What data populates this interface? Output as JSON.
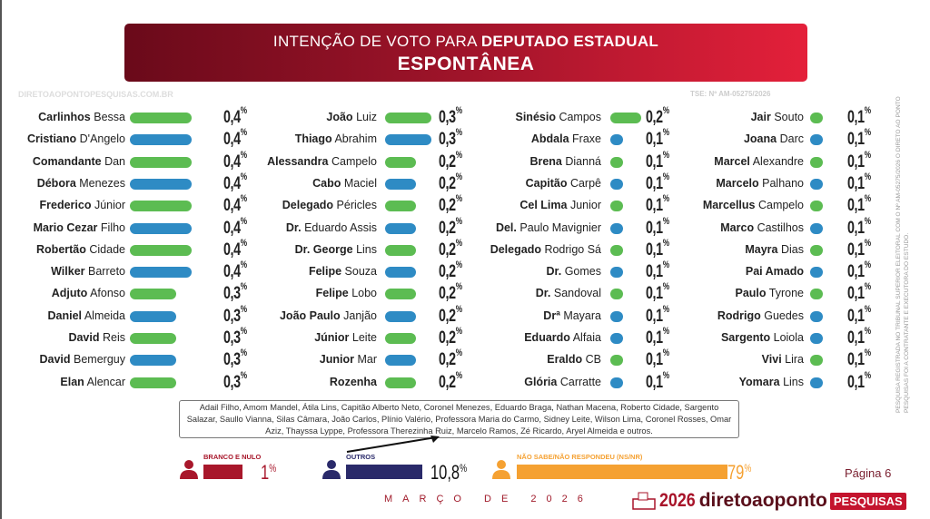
{
  "header": {
    "title_prefix": "INTENÇÃO DE VOTO PARA ",
    "title_bold": "DEPUTADO ESTADUAL",
    "subtitle": "ESPONTÂNEA"
  },
  "colors": {
    "green": "#5cbc52",
    "blue": "#2e8bc4",
    "branco": "#a8172b",
    "outros": "#2a2a6a",
    "nsnr": "#f5a132"
  },
  "chart_data": {
    "type": "bar",
    "title": "INTENÇÃO DE VOTO PARA DEPUTADO ESTADUAL - ESPONTÂNEA",
    "unit": "%",
    "columns": [
      [
        {
          "bold": "Carlinhos",
          "rest": "Bessa",
          "value": 0.4,
          "label": "0,4",
          "color": "green"
        },
        {
          "bold": "Cristiano",
          "rest": "D'Angelo",
          "value": 0.4,
          "label": "0,4",
          "color": "blue"
        },
        {
          "bold": "Comandante",
          "rest": "Dan",
          "value": 0.4,
          "label": "0,4",
          "color": "green"
        },
        {
          "bold": "Débora",
          "rest": "Menezes",
          "value": 0.4,
          "label": "0,4",
          "color": "blue"
        },
        {
          "bold": "Frederico",
          "rest": "Júnior",
          "value": 0.4,
          "label": "0,4",
          "color": "green"
        },
        {
          "bold": "Mario Cezar",
          "rest": "Filho",
          "value": 0.4,
          "label": "0,4",
          "color": "blue"
        },
        {
          "bold": "Robertão",
          "rest": "Cidade",
          "value": 0.4,
          "label": "0,4",
          "color": "green"
        },
        {
          "bold": "Wilker",
          "rest": "Barreto",
          "value": 0.4,
          "label": "0,4",
          "color": "blue"
        },
        {
          "bold": "Adjuto",
          "rest": "Afonso",
          "value": 0.3,
          "label": "0,3",
          "color": "green"
        },
        {
          "bold": "Daniel",
          "rest": "Almeida",
          "value": 0.3,
          "label": "0,3",
          "color": "blue"
        },
        {
          "bold": "David",
          "rest": "Reis",
          "value": 0.3,
          "label": "0,3",
          "color": "green"
        },
        {
          "bold": "David",
          "rest": "Bemerguy",
          "value": 0.3,
          "label": "0,3",
          "color": "blue"
        },
        {
          "bold": "Elan",
          "rest": "Alencar",
          "value": 0.3,
          "label": "0,3",
          "color": "green"
        }
      ],
      [
        {
          "bold": "João",
          "rest": "Luiz",
          "value": 0.3,
          "label": "0,3",
          "color": "green"
        },
        {
          "bold": "Thiago",
          "rest": "Abrahim",
          "value": 0.3,
          "label": "0,3",
          "color": "blue"
        },
        {
          "bold": "Alessandra",
          "rest": "Campelo",
          "value": 0.2,
          "label": "0,2",
          "color": "green"
        },
        {
          "bold": "Cabo",
          "rest": "Maciel",
          "value": 0.2,
          "label": "0,2",
          "color": "blue"
        },
        {
          "bold": "Delegado",
          "rest": "Péricles",
          "value": 0.2,
          "label": "0,2",
          "color": "green"
        },
        {
          "bold": "Dr.",
          "rest": "Eduardo Assis",
          "value": 0.2,
          "label": "0,2",
          "color": "blue"
        },
        {
          "bold": "Dr. George",
          "rest": "Lins",
          "value": 0.2,
          "label": "0,2",
          "color": "green"
        },
        {
          "bold": "Felipe",
          "rest": "Souza",
          "value": 0.2,
          "label": "0,2",
          "color": "blue"
        },
        {
          "bold": "Felipe",
          "rest": "Lobo",
          "value": 0.2,
          "label": "0,2",
          "color": "green"
        },
        {
          "bold": "João Paulo",
          "rest": "Janjão",
          "value": 0.2,
          "label": "0,2",
          "color": "blue"
        },
        {
          "bold": "Júnior",
          "rest": "Leite",
          "value": 0.2,
          "label": "0,2",
          "color": "green"
        },
        {
          "bold": "Junior",
          "rest": "Mar",
          "value": 0.2,
          "label": "0,2",
          "color": "blue"
        },
        {
          "bold": "Rozenha",
          "rest": "",
          "value": 0.2,
          "label": "0,2",
          "color": "green"
        }
      ],
      [
        {
          "bold": "Sinésio",
          "rest": "Campos",
          "value": 0.2,
          "label": "0,2",
          "color": "green"
        },
        {
          "bold": "Abdala",
          "rest": "Fraxe",
          "value": 0.1,
          "label": "0,1",
          "color": "blue"
        },
        {
          "bold": "Brena",
          "rest": "Dianná",
          "value": 0.1,
          "label": "0,1",
          "color": "green"
        },
        {
          "bold": "Capitão",
          "rest": "Carpê",
          "value": 0.1,
          "label": "0,1",
          "color": "blue"
        },
        {
          "bold": "Cel Lima",
          "rest": "Junior",
          "value": 0.1,
          "label": "0,1",
          "color": "green"
        },
        {
          "bold": "Del.",
          "rest": "Paulo Mavignier",
          "value": 0.1,
          "label": "0,1",
          "color": "blue"
        },
        {
          "bold": "Delegado",
          "rest": "Rodrigo Sá",
          "value": 0.1,
          "label": "0,1",
          "color": "green"
        },
        {
          "bold": "Dr.",
          "rest": "Gomes",
          "value": 0.1,
          "label": "0,1",
          "color": "blue"
        },
        {
          "bold": "Dr.",
          "rest": "Sandoval",
          "value": 0.1,
          "label": "0,1",
          "color": "green"
        },
        {
          "bold": "Drª",
          "rest": "Mayara",
          "value": 0.1,
          "label": "0,1",
          "color": "blue"
        },
        {
          "bold": "Eduardo",
          "rest": "Alfaia",
          "value": 0.1,
          "label": "0,1",
          "color": "blue"
        },
        {
          "bold": "Eraldo",
          "rest": "CB",
          "value": 0.1,
          "label": "0,1",
          "color": "green"
        },
        {
          "bold": "Glória",
          "rest": "Carratte",
          "value": 0.1,
          "label": "0,1",
          "color": "blue"
        }
      ],
      [
        {
          "bold": "Jair",
          "rest": "Souto",
          "value": 0.1,
          "label": "0,1",
          "color": "green"
        },
        {
          "bold": "Joana",
          "rest": "Darc",
          "value": 0.1,
          "label": "0,1",
          "color": "blue"
        },
        {
          "bold": "Marcel",
          "rest": "Alexandre",
          "value": 0.1,
          "label": "0,1",
          "color": "green"
        },
        {
          "bold": "Marcelo",
          "rest": "Palhano",
          "value": 0.1,
          "label": "0,1",
          "color": "blue"
        },
        {
          "bold": "Marcellus",
          "rest": "Campelo",
          "value": 0.1,
          "label": "0,1",
          "color": "green"
        },
        {
          "bold": "Marco",
          "rest": "Castilhos",
          "value": 0.1,
          "label": "0,1",
          "color": "blue"
        },
        {
          "bold": "Mayra",
          "rest": "Dias",
          "value": 0.1,
          "label": "0,1",
          "color": "green"
        },
        {
          "bold": "Pai Amado",
          "rest": "",
          "value": 0.1,
          "label": "0,1",
          "color": "blue"
        },
        {
          "bold": "Paulo",
          "rest": "Tyrone",
          "value": 0.1,
          "label": "0,1",
          "color": "green"
        },
        {
          "bold": "Rodrigo",
          "rest": "Guedes",
          "value": 0.1,
          "label": "0,1",
          "color": "blue"
        },
        {
          "bold": "Sargento",
          "rest": "Loiola",
          "value": 0.1,
          "label": "0,1",
          "color": "blue"
        },
        {
          "bold": "Vivi",
          "rest": "Lira",
          "value": 0.1,
          "label": "0,1",
          "color": "green"
        },
        {
          "bold": "Yomara",
          "rest": "Lins",
          "value": 0.1,
          "label": "0,1",
          "color": "blue"
        }
      ]
    ],
    "summary": [
      {
        "name": "BRANCO E NULO",
        "value": 1,
        "label": "1",
        "color": "branco"
      },
      {
        "name": "OUTROS",
        "value": 10.8,
        "label": "10,8",
        "color": "outros"
      },
      {
        "name": "NÃO SABE/NÃO RESPONDEU",
        "suffix": "(NS/NR)",
        "value": 79,
        "label": "79",
        "color": "nsnr"
      }
    ]
  },
  "percent_sign": "%",
  "others_note": "Adail Filho, Amom Mandel, Átila Lins, Capitão Alberto Neto, Coronel Menezes, Eduardo Braga, Nathan Macena, Roberto Cidade, Sargento Salazar, Saullo Vianna, Silas Câmara, João Carlos, Plínio Valério, Professora Maria do Carmo, Sidney Leite, Wilson Lima, Coronel Rosses, Omar Aziz, Thayssa Lyppe, Professora Therezinha Ruiz, Marcelo Ramos, Zé Ricardo, Aryel Almeida e outros.",
  "watermark": {
    "registration": "TSE: Nº AM-05275/2026",
    "site": "DIRETOAOPONTOPESQUISAS.COM.BR"
  },
  "footer": {
    "date": "MARÇO DE 2026",
    "page": "Página 6",
    "logo_year": "2026",
    "logo_brand": "diretoaoponto",
    "logo_tag": "PESQUISAS"
  },
  "side_note": "PESQUISA REGISTRADA NO TRIBUNAL SUPERIOR ELEITORAL COM O Nº AM-05275/2026 O DIRETO AO PONTO PESQUISAS FOI A CONTRATANTE E EXECUTORA DO ESTUDO."
}
